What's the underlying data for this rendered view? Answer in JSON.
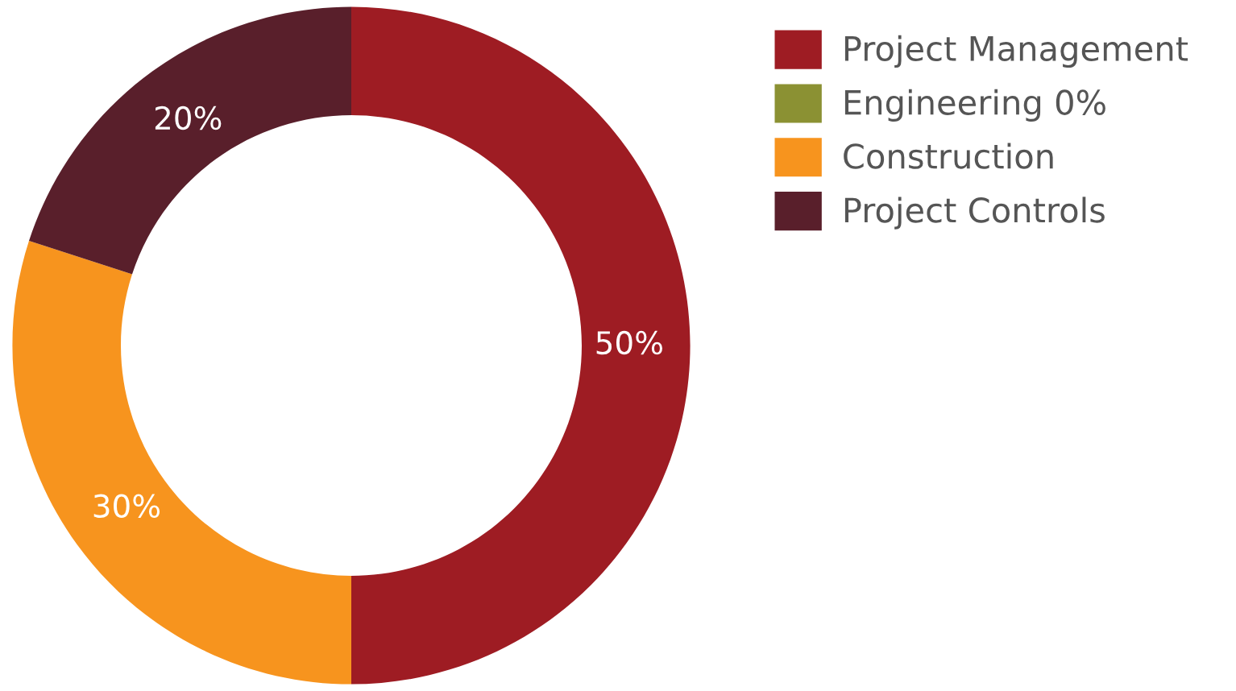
{
  "chart_data": {
    "type": "donut",
    "categories": [
      "Project Management",
      "Engineering 0%",
      "Construction",
      "Project Controls"
    ],
    "values": [
      50,
      0,
      30,
      20
    ],
    "colors": [
      "#9e1c23",
      "#8b9133",
      "#f7941e",
      "#591f2b"
    ],
    "value_labels": [
      "50%",
      null,
      "30%",
      "20%"
    ],
    "legend": "right"
  }
}
